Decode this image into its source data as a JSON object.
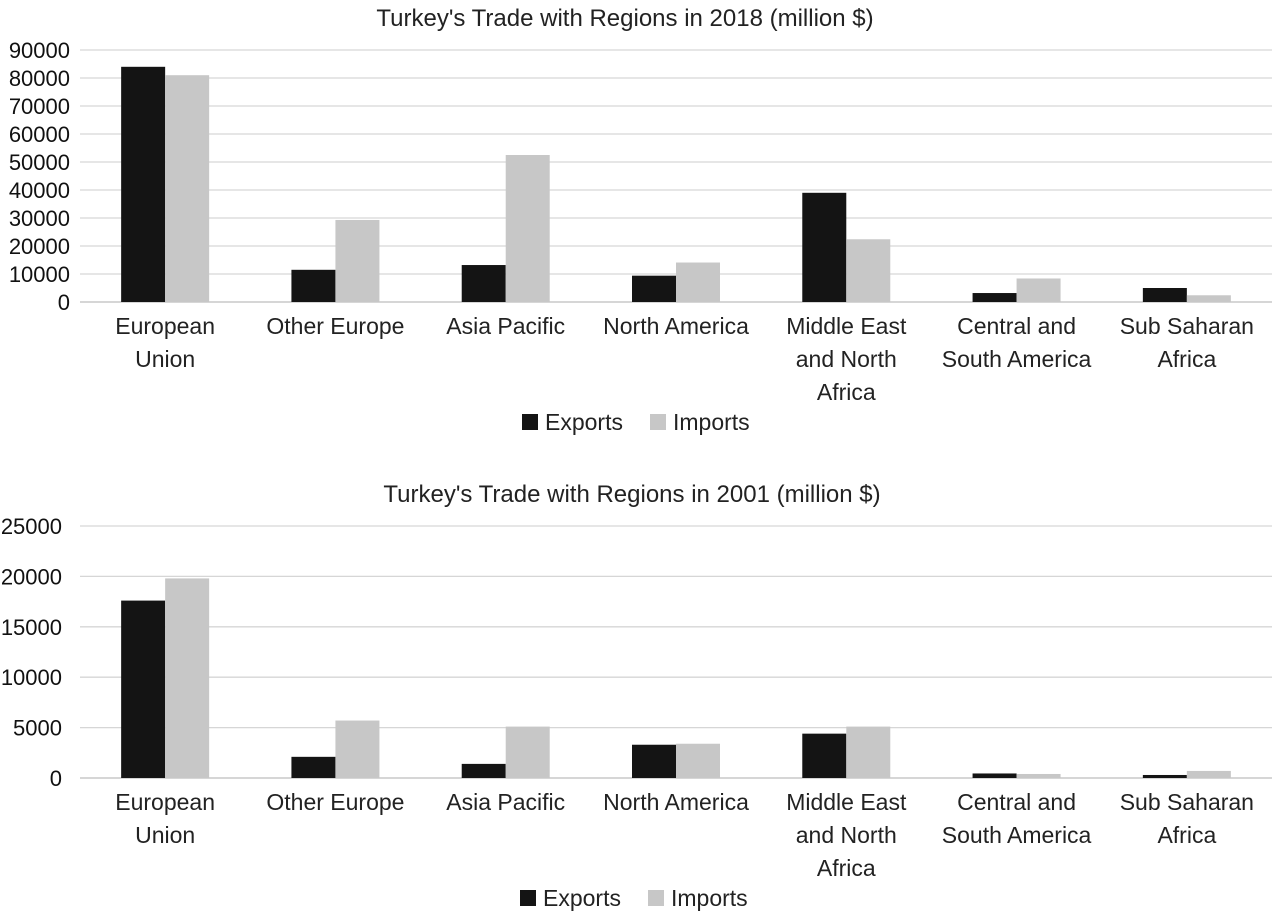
{
  "colors": {
    "exports": "#141414",
    "imports": "#c7c7c7"
  },
  "chart_data": [
    {
      "type": "bar",
      "title": "Turkey's Trade with Regions in 2018 (million $)",
      "categories": [
        [
          "European",
          "Union"
        ],
        [
          "Other Europe"
        ],
        [
          "Asia Pacific"
        ],
        [
          "North America"
        ],
        [
          "Middle East",
          "and North",
          "Africa"
        ],
        [
          "Central and",
          "South America"
        ],
        [
          "Sub Saharan",
          "Africa"
        ]
      ],
      "yticks": [
        "0",
        "10000",
        "20000",
        "30000",
        "40000",
        "50000",
        "60000",
        "70000",
        "80000",
        "90000"
      ],
      "ylim": [
        0,
        90000
      ],
      "grid": true,
      "legend": "bottom-center",
      "series": [
        {
          "name": "Exports",
          "values": [
            84000,
            11500,
            13200,
            9400,
            39000,
            3200,
            5000
          ]
        },
        {
          "name": "Imports",
          "values": [
            81000,
            29300,
            52500,
            14100,
            22400,
            8400,
            2400
          ]
        }
      ]
    },
    {
      "type": "bar",
      "title": "Turkey's Trade with Regions in 2001 (million $)",
      "categories": [
        [
          "European",
          "Union"
        ],
        [
          "Other Europe"
        ],
        [
          "Asia Pacific"
        ],
        [
          "North America"
        ],
        [
          "Middle East",
          "and North",
          "Africa"
        ],
        [
          "Central and",
          "South America"
        ],
        [
          "Sub Saharan",
          "Africa"
        ]
      ],
      "yticks": [
        "0",
        "5000",
        "10000",
        "15000",
        "20000",
        "25000"
      ],
      "ylim": [
        0,
        25000
      ],
      "grid": true,
      "legend": "bottom-center",
      "series": [
        {
          "name": "Exports",
          "values": [
            17600,
            2100,
            1400,
            3300,
            4400,
            450,
            300
          ]
        },
        {
          "name": "Imports",
          "values": [
            19800,
            5700,
            5100,
            3400,
            5100,
            400,
            700
          ]
        }
      ]
    }
  ]
}
